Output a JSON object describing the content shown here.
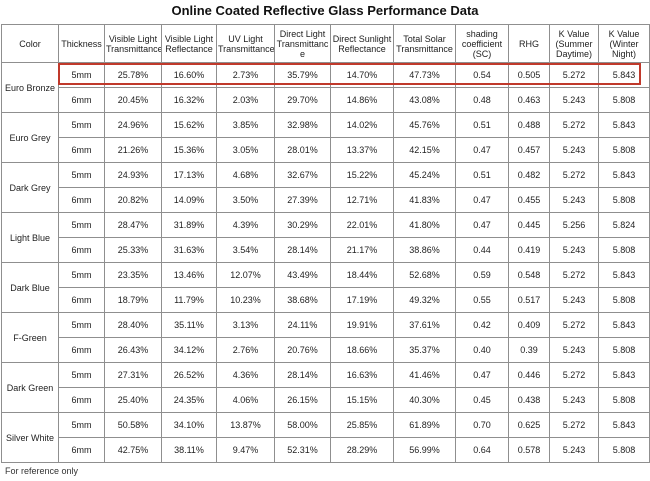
{
  "title": "Online Coated Reflective Glass Performance Data",
  "headers": [
    "Color",
    "Thickness",
    "Visible Light Transmittance",
    "Visible Light Reflectance",
    "UV Light Transmittance",
    "Direct Light Transmittanc e",
    "Direct Sunlight Reflectance",
    "Total Solar Transmittance",
    "shading coefficient (SC)",
    "RHG",
    "K Value (Summer Daytime)",
    "K Value (Winter Night)"
  ],
  "groups": [
    {
      "color": "Euro Bronze",
      "rows": [
        [
          "5mm",
          "25.78%",
          "16.60%",
          "2.73%",
          "35.79%",
          "14.70%",
          "47.73%",
          "0.54",
          "0.505",
          "5.272",
          "5.843"
        ],
        [
          "6mm",
          "20.45%",
          "16.32%",
          "2.03%",
          "29.70%",
          "14.86%",
          "43.08%",
          "0.48",
          "0.463",
          "5.243",
          "5.808"
        ]
      ]
    },
    {
      "color": "Euro Grey",
      "rows": [
        [
          "5mm",
          "24.96%",
          "15.62%",
          "3.85%",
          "32.98%",
          "14.02%",
          "45.76%",
          "0.51",
          "0.488",
          "5.272",
          "5.843"
        ],
        [
          "6mm",
          "21.26%",
          "15.36%",
          "3.05%",
          "28.01%",
          "13.37%",
          "42.15%",
          "0.47",
          "0.457",
          "5.243",
          "5.808"
        ]
      ]
    },
    {
      "color": "Dark Grey",
      "rows": [
        [
          "5mm",
          "24.93%",
          "17.13%",
          "4.68%",
          "32.67%",
          "15.22%",
          "45.24%",
          "0.51",
          "0.482",
          "5.272",
          "5.843"
        ],
        [
          "6mm",
          "20.82%",
          "14.09%",
          "3.50%",
          "27.39%",
          "12.71%",
          "41.83%",
          "0.47",
          "0.455",
          "5.243",
          "5.808"
        ]
      ]
    },
    {
      "color": "Light Blue",
      "rows": [
        [
          "5mm",
          "28.47%",
          "31.89%",
          "4.39%",
          "30.29%",
          "22.01%",
          "41.80%",
          "0.47",
          "0.445",
          "5.256",
          "5.824"
        ],
        [
          "6mm",
          "25.33%",
          "31.63%",
          "3.54%",
          "28.14%",
          "21.17%",
          "38.86%",
          "0.44",
          "0.419",
          "5.243",
          "5.808"
        ]
      ]
    },
    {
      "color": "Dark Blue",
      "rows": [
        [
          "5mm",
          "23.35%",
          "13.46%",
          "12.07%",
          "43.49%",
          "18.44%",
          "52.68%",
          "0.59",
          "0.548",
          "5.272",
          "5.843"
        ],
        [
          "6mm",
          "18.79%",
          "11.79%",
          "10.23%",
          "38.68%",
          "17.19%",
          "49.32%",
          "0.55",
          "0.517",
          "5.243",
          "5.808"
        ]
      ]
    },
    {
      "color": "F-Green",
      "rows": [
        [
          "5mm",
          "28.40%",
          "35.11%",
          "3.13%",
          "24.11%",
          "19.91%",
          "37.61%",
          "0.42",
          "0.409",
          "5.272",
          "5.843"
        ],
        [
          "6mm",
          "26.43%",
          "34.12%",
          "2.76%",
          "20.76%",
          "18.66%",
          "35.37%",
          "0.40",
          "0.39",
          "5.243",
          "5.808"
        ]
      ]
    },
    {
      "color": "Dark Green",
      "rows": [
        [
          "5mm",
          "27.31%",
          "26.52%",
          "4.36%",
          "28.14%",
          "16.63%",
          "41.46%",
          "0.47",
          "0.446",
          "5.272",
          "5.843"
        ],
        [
          "6mm",
          "25.40%",
          "24.35%",
          "4.06%",
          "26.15%",
          "15.15%",
          "40.30%",
          "0.45",
          "0.438",
          "5.243",
          "5.808"
        ]
      ]
    },
    {
      "color": "Silver White",
      "rows": [
        [
          "5mm",
          "50.58%",
          "34.10%",
          "13.87%",
          "58.00%",
          "25.85%",
          "61.89%",
          "0.70",
          "0.625",
          "5.272",
          "5.843"
        ],
        [
          "6mm",
          "42.75%",
          "38.11%",
          "9.47%",
          "52.31%",
          "28.29%",
          "56.99%",
          "0.64",
          "0.578",
          "5.243",
          "5.808"
        ]
      ]
    }
  ],
  "note": "For reference only",
  "highlight_color": "#c0392b"
}
